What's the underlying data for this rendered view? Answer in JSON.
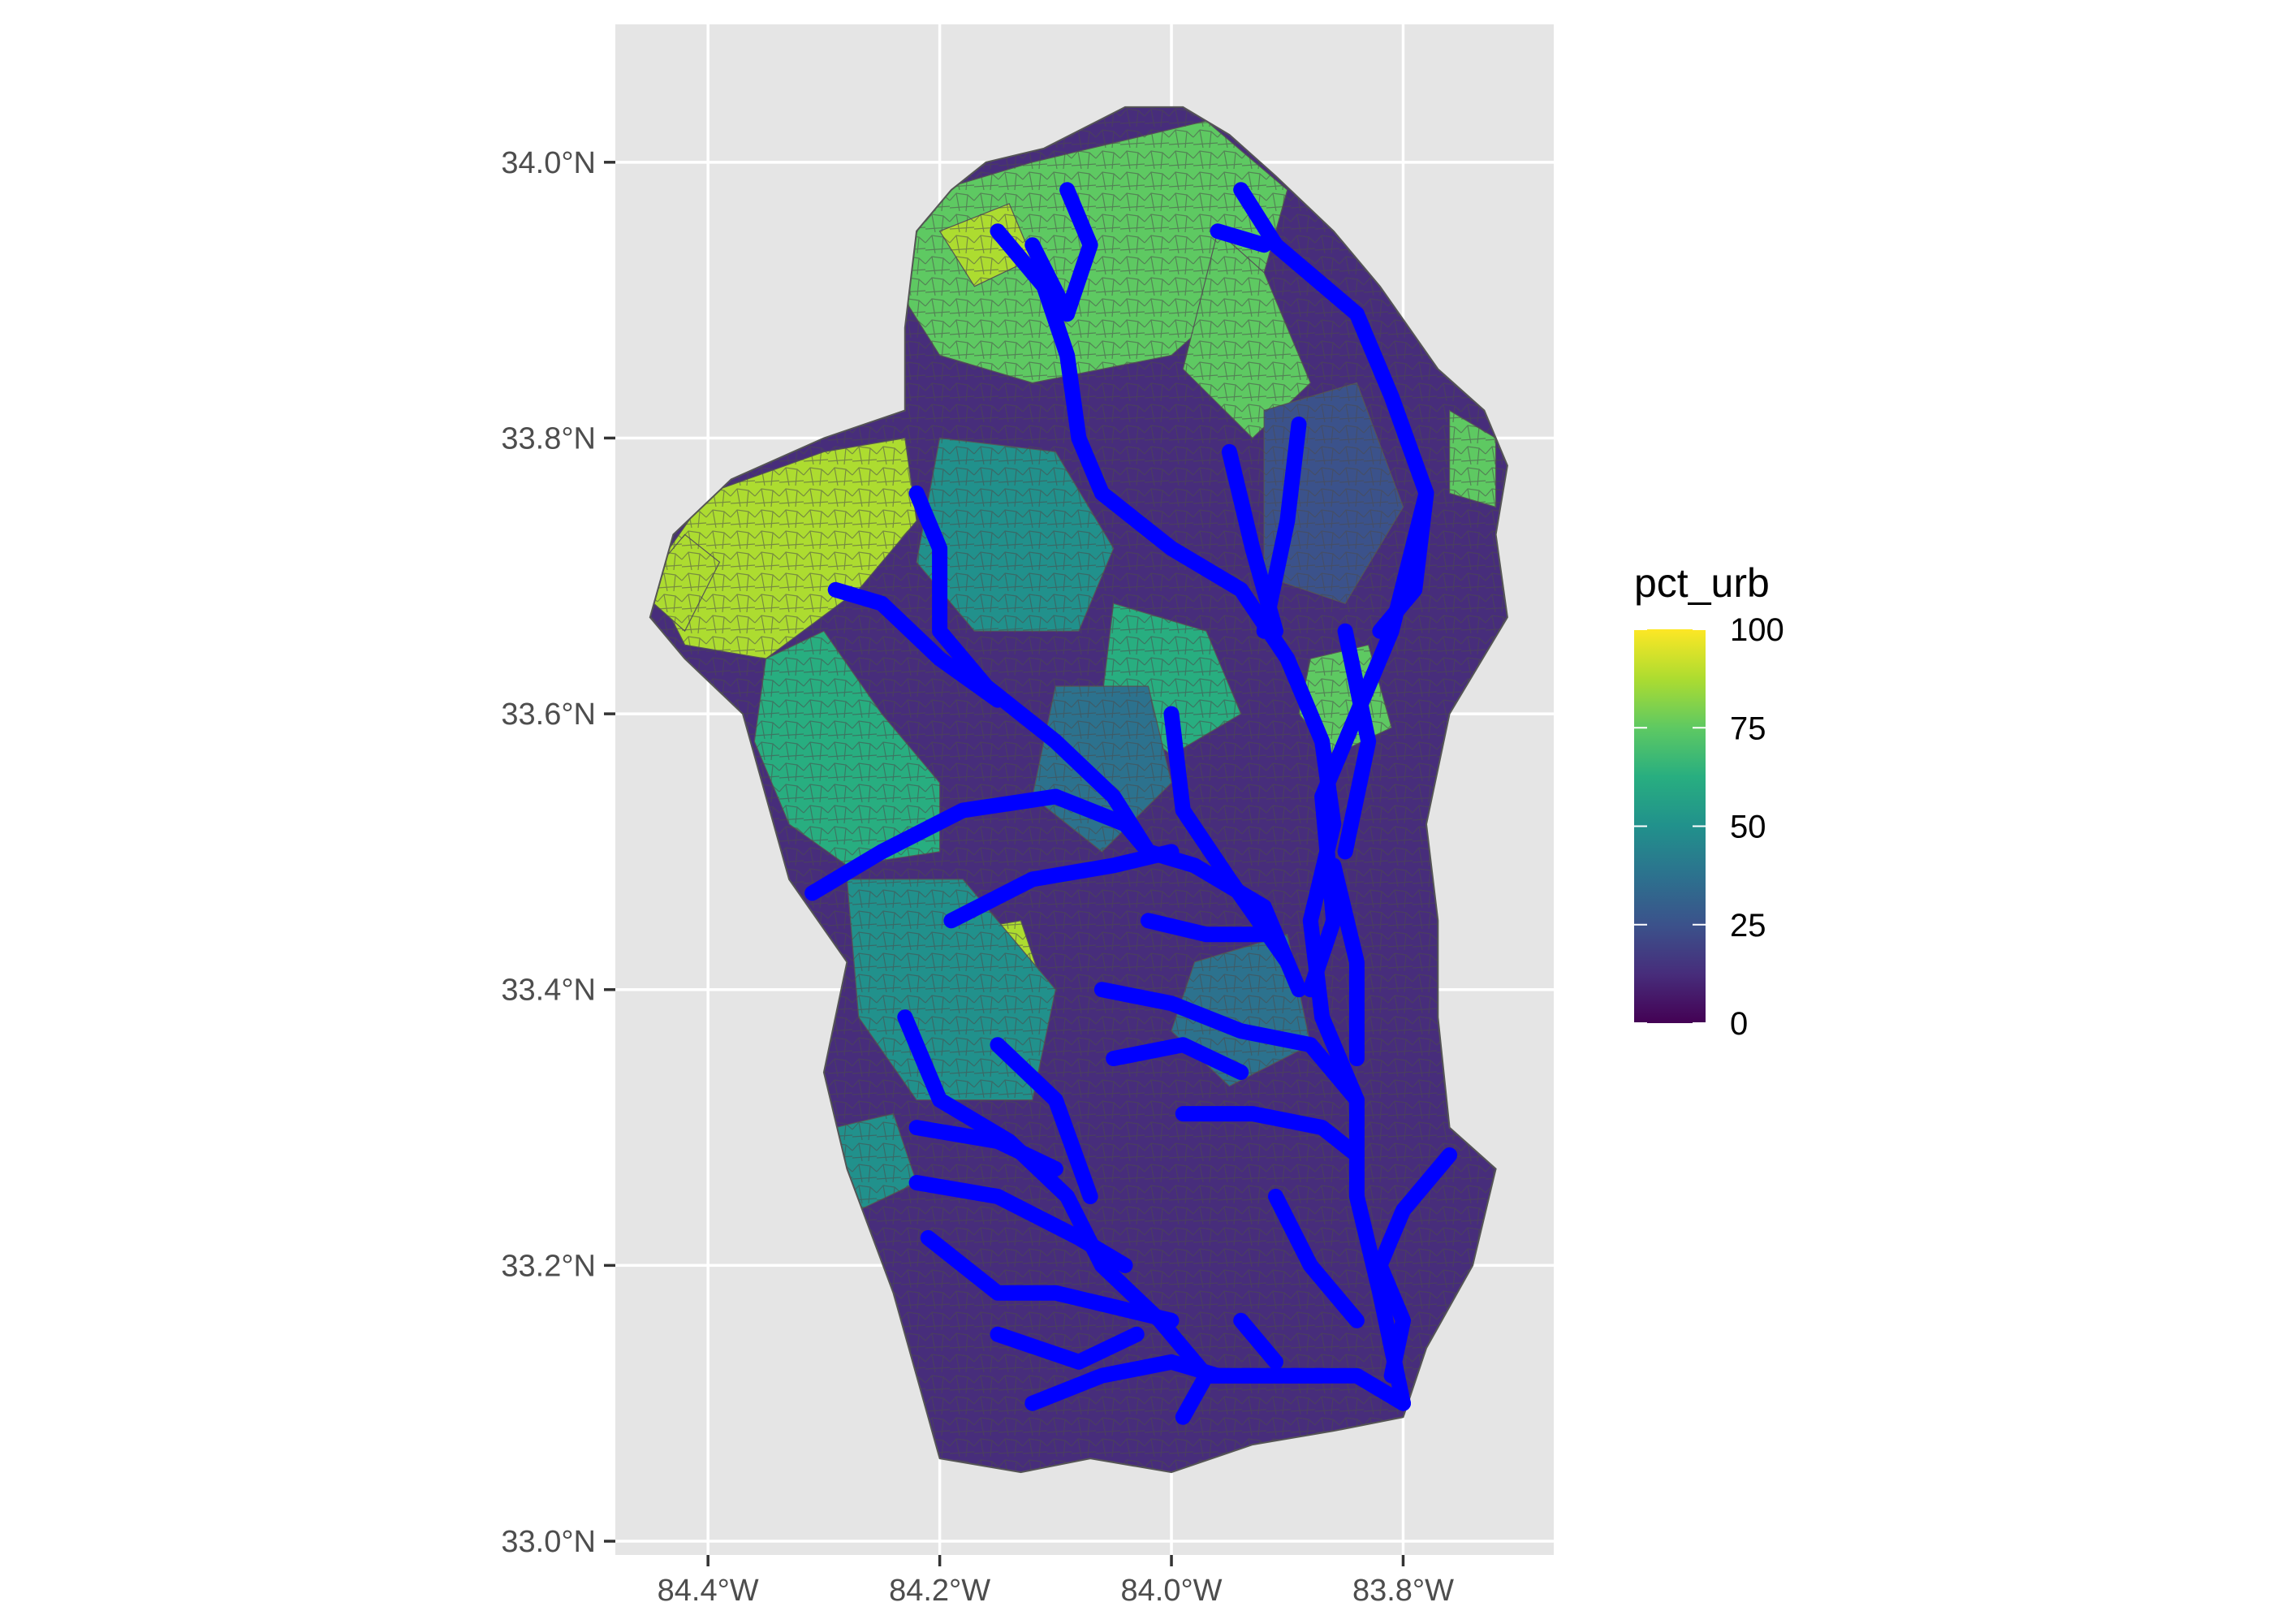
{
  "map": {
    "x_axis": {
      "range": [
        -84.48,
        -83.67
      ],
      "ticks": [
        {
          "value": -84.4,
          "label": "84.4°W"
        },
        {
          "value": -84.2,
          "label": "84.2°W"
        },
        {
          "value": -84.0,
          "label": "84.0°W"
        },
        {
          "value": -83.8,
          "label": "83.8°W"
        }
      ]
    },
    "y_axis": {
      "range": [
        32.99,
        34.1
      ],
      "ticks": [
        {
          "value": 33.0,
          "label": "33.0°N"
        },
        {
          "value": 33.2,
          "label": "33.2°N"
        },
        {
          "value": 33.4,
          "label": "33.4°N"
        },
        {
          "value": 33.6,
          "label": "33.6°N"
        },
        {
          "value": 33.8,
          "label": "33.8°N"
        },
        {
          "value": 34.0,
          "label": "34.0°N"
        }
      ]
    },
    "panel_background": "#e5e5e5",
    "grid": true,
    "fill_variable": "pct_urb",
    "colorscale": "viridis",
    "stream_color": "#0000ff",
    "watershed_outline_lonlat": [
      [
        -84.16,
        34.0
      ],
      [
        -84.11,
        34.01
      ],
      [
        -84.04,
        34.04
      ],
      [
        -83.99,
        34.04
      ],
      [
        -83.95,
        34.02
      ],
      [
        -83.91,
        33.99
      ],
      [
        -83.86,
        33.95
      ],
      [
        -83.82,
        33.91
      ],
      [
        -83.77,
        33.85
      ],
      [
        -83.73,
        33.82
      ],
      [
        -83.71,
        33.78
      ],
      [
        -83.72,
        33.73
      ],
      [
        -83.71,
        33.67
      ],
      [
        -83.76,
        33.6
      ],
      [
        -83.78,
        33.52
      ],
      [
        -83.77,
        33.45
      ],
      [
        -83.77,
        33.38
      ],
      [
        -83.76,
        33.3
      ],
      [
        -83.72,
        33.27
      ],
      [
        -83.74,
        33.2
      ],
      [
        -83.78,
        33.14
      ],
      [
        -83.8,
        33.09
      ],
      [
        -83.86,
        33.08
      ],
      [
        -83.93,
        33.07
      ],
      [
        -84.0,
        33.05
      ],
      [
        -84.07,
        33.06
      ],
      [
        -84.13,
        33.05
      ],
      [
        -84.2,
        33.06
      ],
      [
        -84.22,
        33.12
      ],
      [
        -84.24,
        33.18
      ],
      [
        -84.28,
        33.27
      ],
      [
        -84.3,
        33.34
      ],
      [
        -84.28,
        33.42
      ],
      [
        -84.33,
        33.48
      ],
      [
        -84.37,
        33.6
      ],
      [
        -84.42,
        33.64
      ],
      [
        -84.45,
        33.67
      ],
      [
        -84.43,
        33.73
      ],
      [
        -84.38,
        33.77
      ],
      [
        -84.3,
        33.8
      ],
      [
        -84.23,
        33.82
      ],
      [
        -84.23,
        33.88
      ],
      [
        -84.22,
        33.95
      ],
      [
        -84.19,
        33.98
      ]
    ],
    "urban_zones_lonlat": [
      {
        "pct": 80,
        "points": [
          [
            -84.24,
            33.97
          ],
          [
            -84.12,
            34.0
          ],
          [
            -83.97,
            34.03
          ],
          [
            -83.9,
            33.98
          ],
          [
            -83.92,
            33.92
          ],
          [
            -84.0,
            33.86
          ],
          [
            -84.12,
            33.84
          ],
          [
            -84.2,
            33.86
          ],
          [
            -84.23,
            33.9
          ]
        ]
      },
      {
        "pct": 85,
        "points": [
          [
            -84.45,
            33.7
          ],
          [
            -84.4,
            33.76
          ],
          [
            -84.3,
            33.79
          ],
          [
            -84.23,
            33.8
          ],
          [
            -84.22,
            33.74
          ],
          [
            -84.27,
            33.69
          ],
          [
            -84.35,
            33.64
          ],
          [
            -84.42,
            33.65
          ]
        ]
      },
      {
        "pct": 68,
        "points": [
          [
            -84.35,
            33.64
          ],
          [
            -84.3,
            33.66
          ],
          [
            -84.25,
            33.6
          ],
          [
            -84.2,
            33.55
          ],
          [
            -84.2,
            33.5
          ],
          [
            -84.28,
            33.49
          ],
          [
            -84.33,
            33.52
          ],
          [
            -84.36,
            33.58
          ]
        ]
      },
      {
        "pct": 55,
        "points": [
          [
            -84.2,
            33.8
          ],
          [
            -84.1,
            33.79
          ],
          [
            -84.05,
            33.72
          ],
          [
            -84.08,
            33.66
          ],
          [
            -84.17,
            33.66
          ],
          [
            -84.22,
            33.71
          ]
        ]
      },
      {
        "pct": 82,
        "points": [
          [
            -84.2,
            33.44
          ],
          [
            -84.13,
            33.45
          ],
          [
            -84.11,
            33.4
          ],
          [
            -84.16,
            33.37
          ],
          [
            -84.2,
            33.39
          ]
        ]
      },
      {
        "pct": 45,
        "points": [
          [
            -84.28,
            33.48
          ],
          [
            -84.18,
            33.48
          ],
          [
            -84.1,
            33.4
          ],
          [
            -84.12,
            33.32
          ],
          [
            -84.22,
            33.32
          ],
          [
            -84.27,
            33.38
          ]
        ]
      },
      {
        "pct": 72,
        "points": [
          [
            -83.96,
            33.95
          ],
          [
            -83.92,
            33.92
          ],
          [
            -83.88,
            33.84
          ],
          [
            -83.93,
            33.8
          ],
          [
            -83.99,
            33.85
          ]
        ]
      },
      {
        "pct": 60,
        "points": [
          [
            -84.05,
            33.68
          ],
          [
            -83.97,
            33.66
          ],
          [
            -83.94,
            33.6
          ],
          [
            -84.0,
            33.57
          ],
          [
            -84.06,
            33.61
          ]
        ]
      },
      {
        "pct": 78,
        "points": [
          [
            -83.88,
            33.64
          ],
          [
            -83.83,
            33.65
          ],
          [
            -83.81,
            33.59
          ],
          [
            -83.86,
            33.57
          ],
          [
            -83.89,
            33.6
          ]
        ]
      },
      {
        "pct": 92,
        "points": [
          [
            -84.46,
            33.69
          ],
          [
            -84.42,
            33.73
          ],
          [
            -84.39,
            33.71
          ],
          [
            -84.42,
            33.66
          ]
        ]
      },
      {
        "pct": 90,
        "points": [
          [
            -84.2,
            33.95
          ],
          [
            -84.14,
            33.97
          ],
          [
            -84.12,
            33.93
          ],
          [
            -84.17,
            33.91
          ]
        ]
      },
      {
        "pct": 35,
        "points": [
          [
            -84.1,
            33.62
          ],
          [
            -84.02,
            33.62
          ],
          [
            -84.0,
            33.55
          ],
          [
            -84.06,
            33.5
          ],
          [
            -84.12,
            33.54
          ]
        ]
      },
      {
        "pct": 25,
        "points": [
          [
            -83.92,
            33.82
          ],
          [
            -83.84,
            33.84
          ],
          [
            -83.8,
            33.75
          ],
          [
            -83.85,
            33.68
          ],
          [
            -83.92,
            33.7
          ]
        ]
      },
      {
        "pct": 40,
        "points": [
          [
            -83.98,
            33.42
          ],
          [
            -83.9,
            33.44
          ],
          [
            -83.88,
            33.36
          ],
          [
            -83.95,
            33.33
          ],
          [
            -84.0,
            33.37
          ]
        ]
      },
      {
        "pct": 75,
        "points": [
          [
            -83.76,
            33.82
          ],
          [
            -83.72,
            33.8
          ],
          [
            -83.72,
            33.75
          ],
          [
            -83.76,
            33.76
          ]
        ]
      },
      {
        "pct": 50,
        "points": [
          [
            -84.29,
            33.3
          ],
          [
            -84.24,
            33.31
          ],
          [
            -84.22,
            33.26
          ],
          [
            -84.27,
            33.24
          ]
        ]
      }
    ],
    "streams_lonlat": [
      [
        [
          -84.15,
          33.95
        ],
        [
          -84.11,
          33.91
        ],
        [
          -84.09,
          33.86
        ],
        [
          -84.08,
          33.8
        ],
        [
          -84.06,
          33.76
        ],
        [
          -84.0,
          33.72
        ],
        [
          -83.94,
          33.69
        ],
        [
          -83.9,
          33.64
        ],
        [
          -83.87,
          33.58
        ],
        [
          -83.86,
          33.52
        ],
        [
          -83.88,
          33.45
        ],
        [
          -83.87,
          33.38
        ],
        [
          -83.84,
          33.32
        ],
        [
          -83.84,
          33.25
        ],
        [
          -83.82,
          33.18
        ],
        [
          -83.8,
          33.1
        ]
      ],
      [
        [
          -84.09,
          33.98
        ],
        [
          -84.07,
          33.94
        ],
        [
          -84.09,
          33.89
        ]
      ],
      [
        [
          -84.12,
          33.94
        ],
        [
          -84.09,
          33.89
        ]
      ],
      [
        [
          -83.94,
          33.98
        ],
        [
          -83.91,
          33.94
        ],
        [
          -83.84,
          33.89
        ],
        [
          -83.81,
          33.83
        ],
        [
          -83.78,
          33.76
        ],
        [
          -83.79,
          33.69
        ],
        [
          -83.82,
          33.66
        ]
      ],
      [
        [
          -83.96,
          33.95
        ],
        [
          -83.92,
          33.94
        ]
      ],
      [
        [
          -83.89,
          33.81
        ],
        [
          -83.9,
          33.74
        ],
        [
          -83.92,
          33.66
        ]
      ],
      [
        [
          -83.95,
          33.79
        ],
        [
          -83.93,
          33.72
        ],
        [
          -83.91,
          33.66
        ]
      ],
      [
        [
          -83.78,
          33.76
        ],
        [
          -83.81,
          33.66
        ],
        [
          -83.84,
          33.6
        ],
        [
          -83.87,
          33.54
        ],
        [
          -83.86,
          33.45
        ],
        [
          -83.88,
          33.4
        ]
      ],
      [
        [
          -83.85,
          33.66
        ],
        [
          -83.83,
          33.58
        ],
        [
          -83.85,
          33.5
        ]
      ],
      [
        [
          -84.22,
          33.76
        ],
        [
          -84.2,
          33.72
        ],
        [
          -84.2,
          33.66
        ],
        [
          -84.16,
          33.62
        ],
        [
          -84.1,
          33.58
        ],
        [
          -84.05,
          33.54
        ],
        [
          -84.02,
          33.5
        ],
        [
          -83.98,
          33.49
        ],
        [
          -83.92,
          33.46
        ],
        [
          -83.89,
          33.4
        ]
      ],
      [
        [
          -84.29,
          33.69
        ],
        [
          -84.25,
          33.68
        ],
        [
          -84.2,
          33.64
        ],
        [
          -84.15,
          33.61
        ]
      ],
      [
        [
          -84.31,
          33.47
        ],
        [
          -84.25,
          33.5
        ],
        [
          -84.18,
          33.53
        ],
        [
          -84.1,
          33.54
        ],
        [
          -84.04,
          33.52
        ],
        [
          -84.02,
          33.5
        ]
      ],
      [
        [
          -84.19,
          33.45
        ],
        [
          -84.12,
          33.48
        ],
        [
          -84.05,
          33.49
        ],
        [
          -84.0,
          33.5
        ]
      ],
      [
        [
          -84.0,
          33.6
        ],
        [
          -83.99,
          33.53
        ],
        [
          -83.95,
          33.48
        ],
        [
          -83.9,
          33.42
        ]
      ],
      [
        [
          -84.06,
          33.4
        ],
        [
          -84.0,
          33.39
        ],
        [
          -83.94,
          33.37
        ],
        [
          -83.88,
          33.36
        ],
        [
          -83.84,
          33.32
        ]
      ],
      [
        [
          -84.05,
          33.35
        ],
        [
          -83.99,
          33.36
        ],
        [
          -83.94,
          33.34
        ]
      ],
      [
        [
          -84.23,
          33.38
        ],
        [
          -84.2,
          33.32
        ],
        [
          -84.14,
          33.29
        ],
        [
          -84.09,
          33.25
        ],
        [
          -84.06,
          33.2
        ],
        [
          -84.01,
          33.16
        ],
        [
          -83.97,
          33.12
        ],
        [
          -83.9,
          33.12
        ],
        [
          -83.84,
          33.12
        ],
        [
          -83.8,
          33.1
        ]
      ],
      [
        [
          -84.15,
          33.36
        ],
        [
          -84.1,
          33.32
        ],
        [
          -84.07,
          33.25
        ]
      ],
      [
        [
          -84.22,
          33.3
        ],
        [
          -84.15,
          33.29
        ],
        [
          -84.1,
          33.27
        ]
      ],
      [
        [
          -84.22,
          33.26
        ],
        [
          -84.15,
          33.25
        ],
        [
          -84.08,
          33.22
        ],
        [
          -84.04,
          33.2
        ]
      ],
      [
        [
          -84.21,
          33.22
        ],
        [
          -84.15,
          33.18
        ],
        [
          -84.1,
          33.18
        ],
        [
          -84.05,
          33.17
        ],
        [
          -84.0,
          33.16
        ]
      ],
      [
        [
          -84.12,
          33.1
        ],
        [
          -84.06,
          33.12
        ],
        [
          -84.0,
          33.13
        ],
        [
          -83.96,
          33.12
        ]
      ],
      [
        [
          -84.15,
          33.15
        ],
        [
          -84.08,
          33.13
        ],
        [
          -84.03,
          33.15
        ]
      ],
      [
        [
          -83.99,
          33.31
        ],
        [
          -83.93,
          33.31
        ],
        [
          -83.87,
          33.3
        ],
        [
          -83.84,
          33.28
        ]
      ],
      [
        [
          -83.76,
          33.28
        ],
        [
          -83.8,
          33.24
        ],
        [
          -83.82,
          33.2
        ],
        [
          -83.8,
          33.16
        ],
        [
          -83.81,
          33.12
        ]
      ],
      [
        [
          -83.91,
          33.25
        ],
        [
          -83.88,
          33.2
        ],
        [
          -83.84,
          33.16
        ]
      ],
      [
        [
          -83.86,
          33.49
        ],
        [
          -83.84,
          33.42
        ],
        [
          -83.84,
          33.35
        ]
      ],
      [
        [
          -83.99,
          33.09
        ],
        [
          -83.97,
          33.12
        ],
        [
          -83.93,
          33.12
        ],
        [
          -83.87,
          33.12
        ]
      ],
      [
        [
          -83.94,
          33.16
        ],
        [
          -83.91,
          33.13
        ]
      ],
      [
        [
          -84.02,
          33.45
        ],
        [
          -83.97,
          33.44
        ],
        [
          -83.92,
          33.44
        ]
      ]
    ]
  },
  "legend": {
    "title": "pct_urb",
    "range": [
      0,
      100
    ],
    "ticks": [
      {
        "value": 100,
        "label": "100"
      },
      {
        "value": 75,
        "label": "75"
      },
      {
        "value": 50,
        "label": "50"
      },
      {
        "value": 25,
        "label": "25"
      },
      {
        "value": 0,
        "label": "0"
      }
    ]
  }
}
